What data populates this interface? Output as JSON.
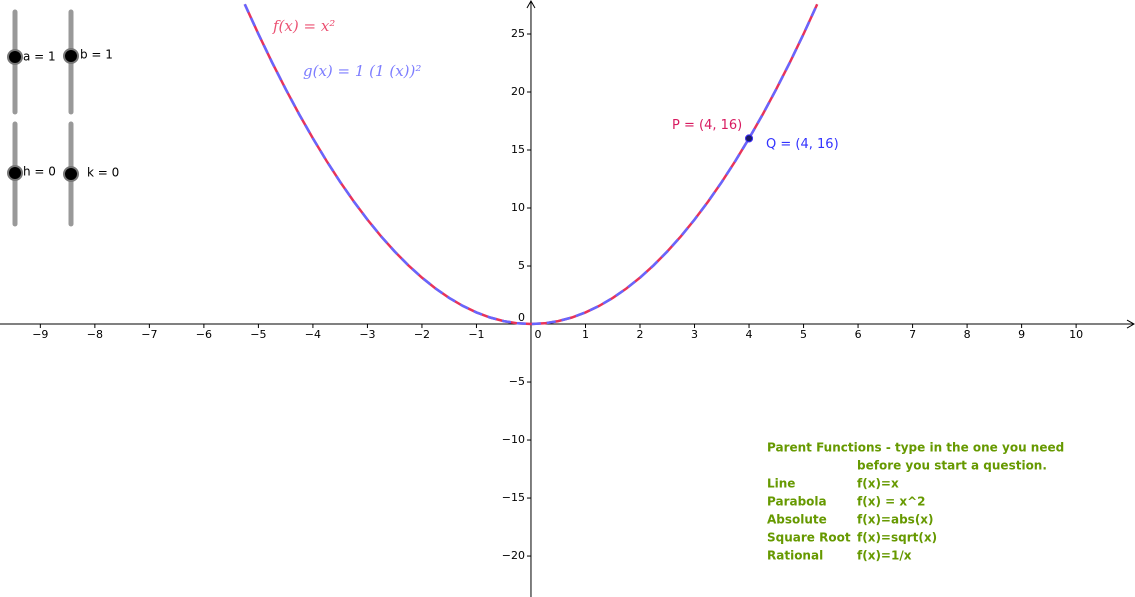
{
  "chart_data": {
    "type": "line",
    "xlim": [
      -9.74,
      11.08
    ],
    "ylim": [
      -23.53,
      27.93
    ],
    "xticks": [
      {
        "value": -9,
        "label": "−9"
      },
      {
        "value": -8,
        "label": "−8"
      },
      {
        "value": -7,
        "label": "−7"
      },
      {
        "value": -6,
        "label": "−6"
      },
      {
        "value": -5,
        "label": "−5"
      },
      {
        "value": -4,
        "label": "−4"
      },
      {
        "value": -3,
        "label": "−3"
      },
      {
        "value": -2,
        "label": "−2"
      },
      {
        "value": -1,
        "label": "−1"
      },
      0,
      1,
      2,
      3,
      4,
      5,
      6,
      7,
      8,
      9,
      10
    ],
    "yticks": [
      {
        "value": -20,
        "label": "−20"
      },
      {
        "value": -15,
        "label": "−15"
      },
      {
        "value": -10,
        "label": "−10"
      },
      {
        "value": -5,
        "label": "−5"
      },
      0,
      5,
      10,
      15,
      20,
      25
    ],
    "x": [
      -5.25,
      -5,
      -4.75,
      -4.5,
      -4.25,
      -4,
      -3.75,
      -3.5,
      -3.25,
      -3,
      -2.75,
      -2.5,
      -2.25,
      -2,
      -1.75,
      -1.5,
      -1.25,
      -1,
      -0.75,
      -0.5,
      -0.25,
      0,
      0.25,
      0.5,
      0.75,
      1,
      1.25,
      1.5,
      1.75,
      2,
      2.25,
      2.5,
      2.75,
      3,
      3.25,
      3.5,
      3.75,
      4,
      4.25,
      4.5,
      4.75,
      5,
      5.25
    ],
    "series": [
      {
        "name": "f(x) = x²",
        "color": "#e8335a",
        "values": [
          27.5625,
          25,
          22.5625,
          20.25,
          18.0625,
          16,
          14.0625,
          12.25,
          10.5625,
          9,
          7.5625,
          6.25,
          5.0625,
          4,
          3.0625,
          2.25,
          1.5625,
          1,
          0.5625,
          0.25,
          0.0625,
          0,
          0.0625,
          0.25,
          0.5625,
          1,
          1.5625,
          2.25,
          3.0625,
          4,
          5.0625,
          6.25,
          7.5625,
          9,
          10.5625,
          12.25,
          14.0625,
          16,
          18.0625,
          20.25,
          22.5625,
          25,
          27.5625
        ]
      },
      {
        "name": "g(x) = 1 (1 (x))²",
        "color": "#6666ff",
        "values": [
          27.5625,
          25,
          22.5625,
          20.25,
          18.0625,
          16,
          14.0625,
          12.25,
          10.5625,
          9,
          7.5625,
          6.25,
          5.0625,
          4,
          3.0625,
          2.25,
          1.5625,
          1,
          0.5625,
          0.25,
          0.0625,
          0,
          0.0625,
          0.25,
          0.5625,
          1,
          1.5625,
          2.25,
          3.0625,
          4,
          5.0625,
          6.25,
          7.5625,
          9,
          10.5625,
          12.25,
          14.0625,
          16,
          18.0625,
          20.25,
          22.5625,
          25,
          27.5625
        ]
      }
    ],
    "points": [
      {
        "label": "P = (4, 16)",
        "color": "#d81b60",
        "x": 4,
        "y": 16
      },
      {
        "label": "Q = (4, 16)",
        "color": "#3333ff",
        "x": 4,
        "y": 16
      }
    ]
  },
  "sliders": [
    "a = 1",
    "b = 1",
    "h = 0",
    "k = 0"
  ],
  "note": {
    "title": "Parent Functions - type in the one you need",
    "subtitle": "before you start a question.",
    "rows": [
      [
        "Line",
        "f(x)=x"
      ],
      [
        "Parabola",
        "f(x) = x^2"
      ],
      [
        "Absolute",
        "f(x)=abs(x)"
      ],
      [
        "Square Root",
        "f(x)=sqrt(x)"
      ],
      [
        "Rational",
        "f(x)=1/x"
      ]
    ]
  }
}
